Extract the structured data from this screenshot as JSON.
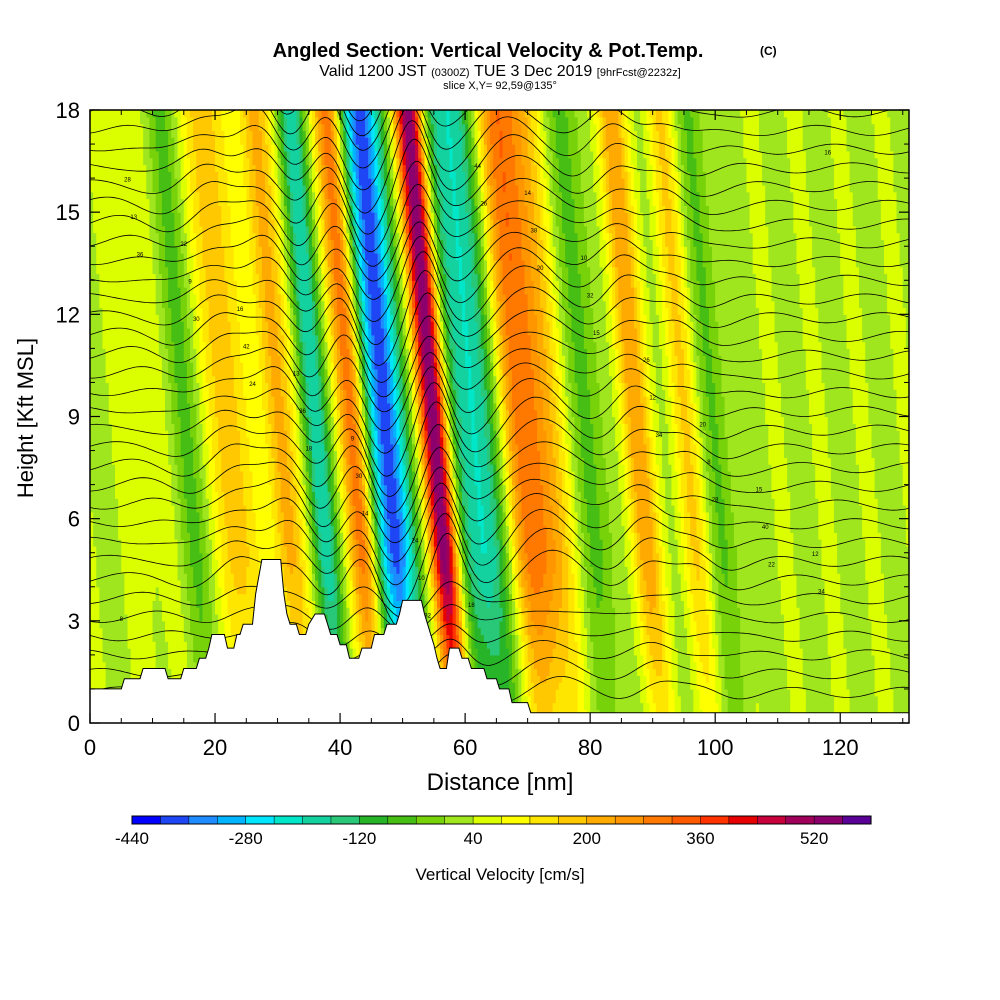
{
  "header": {
    "title": "Angled Section: Vertical Velocity & Pot.Temp.",
    "title_mark": "(C)",
    "valid_prefix": "Valid 1200 JST",
    "valid_z": "(0300Z)",
    "valid_date": "TUE 3 Dec 2019",
    "valid_fcst": "[9hrFcst@2232z]",
    "slice": "slice X,Y= 92,59@135°"
  },
  "chart_data": {
    "type": "heatmap",
    "title": "Angled Section: Vertical Velocity & Pot.Temp.",
    "xlabel": "Distance [nm]",
    "ylabel": "Height [Kft MSL]",
    "xlim": [
      0,
      131
    ],
    "ylim": [
      0,
      18
    ],
    "x_ticks": [
      0,
      20,
      40,
      60,
      80,
      100,
      120
    ],
    "y_ticks": [
      0,
      3,
      6,
      9,
      12,
      15,
      18
    ],
    "x_tick_labels": [
      "0",
      "20",
      "40",
      "60",
      "80",
      "100",
      "120"
    ],
    "y_tick_labels": [
      "0",
      "3",
      "6",
      "9",
      "12",
      "15",
      "18"
    ],
    "colorbar": {
      "label": "Vertical Velocity [cm/s]",
      "levels": [
        -440,
        -400,
        -360,
        -320,
        -280,
        -240,
        -200,
        -160,
        -120,
        -80,
        -40,
        0,
        40,
        80,
        120,
        160,
        200,
        240,
        280,
        320,
        360,
        400,
        440,
        480,
        520,
        560,
        600
      ],
      "colors": [
        "#0000ff",
        "#1e46f5",
        "#1e8cff",
        "#00b4ff",
        "#00e6ff",
        "#00e6c8",
        "#14d2a0",
        "#28c878",
        "#28b428",
        "#46be14",
        "#78d20a",
        "#a0e61e",
        "#dcff00",
        "#ffff00",
        "#ffe600",
        "#ffc800",
        "#ffaa00",
        "#ff9600",
        "#ff7800",
        "#ff5a00",
        "#ff3200",
        "#e60000",
        "#c8003c",
        "#a0005a",
        "#8c006e",
        "#5a0096"
      ],
      "tick_labels": [
        "-440",
        "-280",
        "-120",
        "40",
        "200",
        "360",
        "520"
      ]
    },
    "updraft_axes": [
      {
        "x": 8,
        "w": 3.5,
        "amp": 40
      },
      {
        "x": 22,
        "w": 3,
        "amp": 180
      },
      {
        "x": 30,
        "w": 2.5,
        "amp": 200
      },
      {
        "x": 42,
        "w": 2.2,
        "amp": 300
      },
      {
        "x": 55,
        "w": 2.2,
        "amp": 540
      },
      {
        "x": 70,
        "w": 4.5,
        "amp": 300
      },
      {
        "x": 87,
        "w": 2.5,
        "amp": 200
      },
      {
        "x": 95,
        "w": 2.5,
        "amp": 120
      }
    ],
    "downdraft_axes": [
      {
        "x": 15,
        "w": 3,
        "amp": -60
      },
      {
        "x": 36,
        "w": 2.2,
        "amp": -200
      },
      {
        "x": 47,
        "w": 3,
        "amp": -440
      },
      {
        "x": 61,
        "w": 4,
        "amp": -260
      },
      {
        "x": 80,
        "w": 3,
        "amp": -80
      },
      {
        "x": 100,
        "w": 3,
        "amp": -60
      }
    ],
    "terrain": [
      [
        0,
        1.0
      ],
      [
        5,
        1.0
      ],
      [
        5.5,
        1.3
      ],
      [
        8,
        1.3
      ],
      [
        8.5,
        1.6
      ],
      [
        12,
        1.6
      ],
      [
        12.5,
        1.3
      ],
      [
        14.5,
        1.3
      ],
      [
        15,
        1.6
      ],
      [
        17,
        1.6
      ],
      [
        17.5,
        1.9
      ],
      [
        18.5,
        1.9
      ],
      [
        19,
        2.2
      ],
      [
        19.5,
        2.6
      ],
      [
        21.5,
        2.6
      ],
      [
        22,
        2.2
      ],
      [
        23,
        2.2
      ],
      [
        23.5,
        2.6
      ],
      [
        24,
        2.6
      ],
      [
        24.5,
        2.9
      ],
      [
        26,
        2.9
      ],
      [
        26.5,
        3.8
      ],
      [
        27.5,
        4.8
      ],
      [
        30.5,
        4.8
      ],
      [
        31,
        3.8
      ],
      [
        31.5,
        3.2
      ],
      [
        32,
        2.9
      ],
      [
        33,
        2.9
      ],
      [
        33.5,
        2.6
      ],
      [
        34.5,
        2.6
      ],
      [
        35,
        2.9
      ],
      [
        36,
        3.2
      ],
      [
        37.5,
        3.2
      ],
      [
        38,
        2.9
      ],
      [
        38.5,
        2.6
      ],
      [
        39.5,
        2.6
      ],
      [
        40,
        2.3
      ],
      [
        41,
        2.3
      ],
      [
        41.5,
        1.9
      ],
      [
        43,
        1.9
      ],
      [
        43.5,
        2.2
      ],
      [
        45,
        2.2
      ],
      [
        45.5,
        2.6
      ],
      [
        47,
        2.6
      ],
      [
        47.5,
        2.9
      ],
      [
        49,
        2.9
      ],
      [
        49.5,
        3.2
      ],
      [
        50,
        3.6
      ],
      [
        53,
        3.6
      ],
      [
        53.5,
        3.2
      ],
      [
        54,
        2.9
      ],
      [
        54.5,
        2.6
      ],
      [
        55,
        2.3
      ],
      [
        55.5,
        1.9
      ],
      [
        56,
        1.6
      ],
      [
        57,
        1.6
      ],
      [
        57.5,
        2.2
      ],
      [
        59,
        2.2
      ],
      [
        59.5,
        1.9
      ],
      [
        60.5,
        1.9
      ],
      [
        61,
        1.6
      ],
      [
        63,
        1.6
      ],
      [
        63.5,
        1.3
      ],
      [
        65,
        1.3
      ],
      [
        65.5,
        1.0
      ],
      [
        67,
        1.0
      ],
      [
        67.5,
        0.6
      ],
      [
        70,
        0.6
      ],
      [
        70.5,
        0.3
      ],
      [
        131,
        0.3
      ]
    ],
    "contour_labels": [
      "8",
      "9",
      "10",
      "12",
      "13",
      "14",
      "15",
      "16",
      "18",
      "20",
      "22",
      "24",
      "26",
      "28",
      "30",
      "32",
      "34",
      "36",
      "38",
      "40",
      "42",
      "44"
    ]
  }
}
